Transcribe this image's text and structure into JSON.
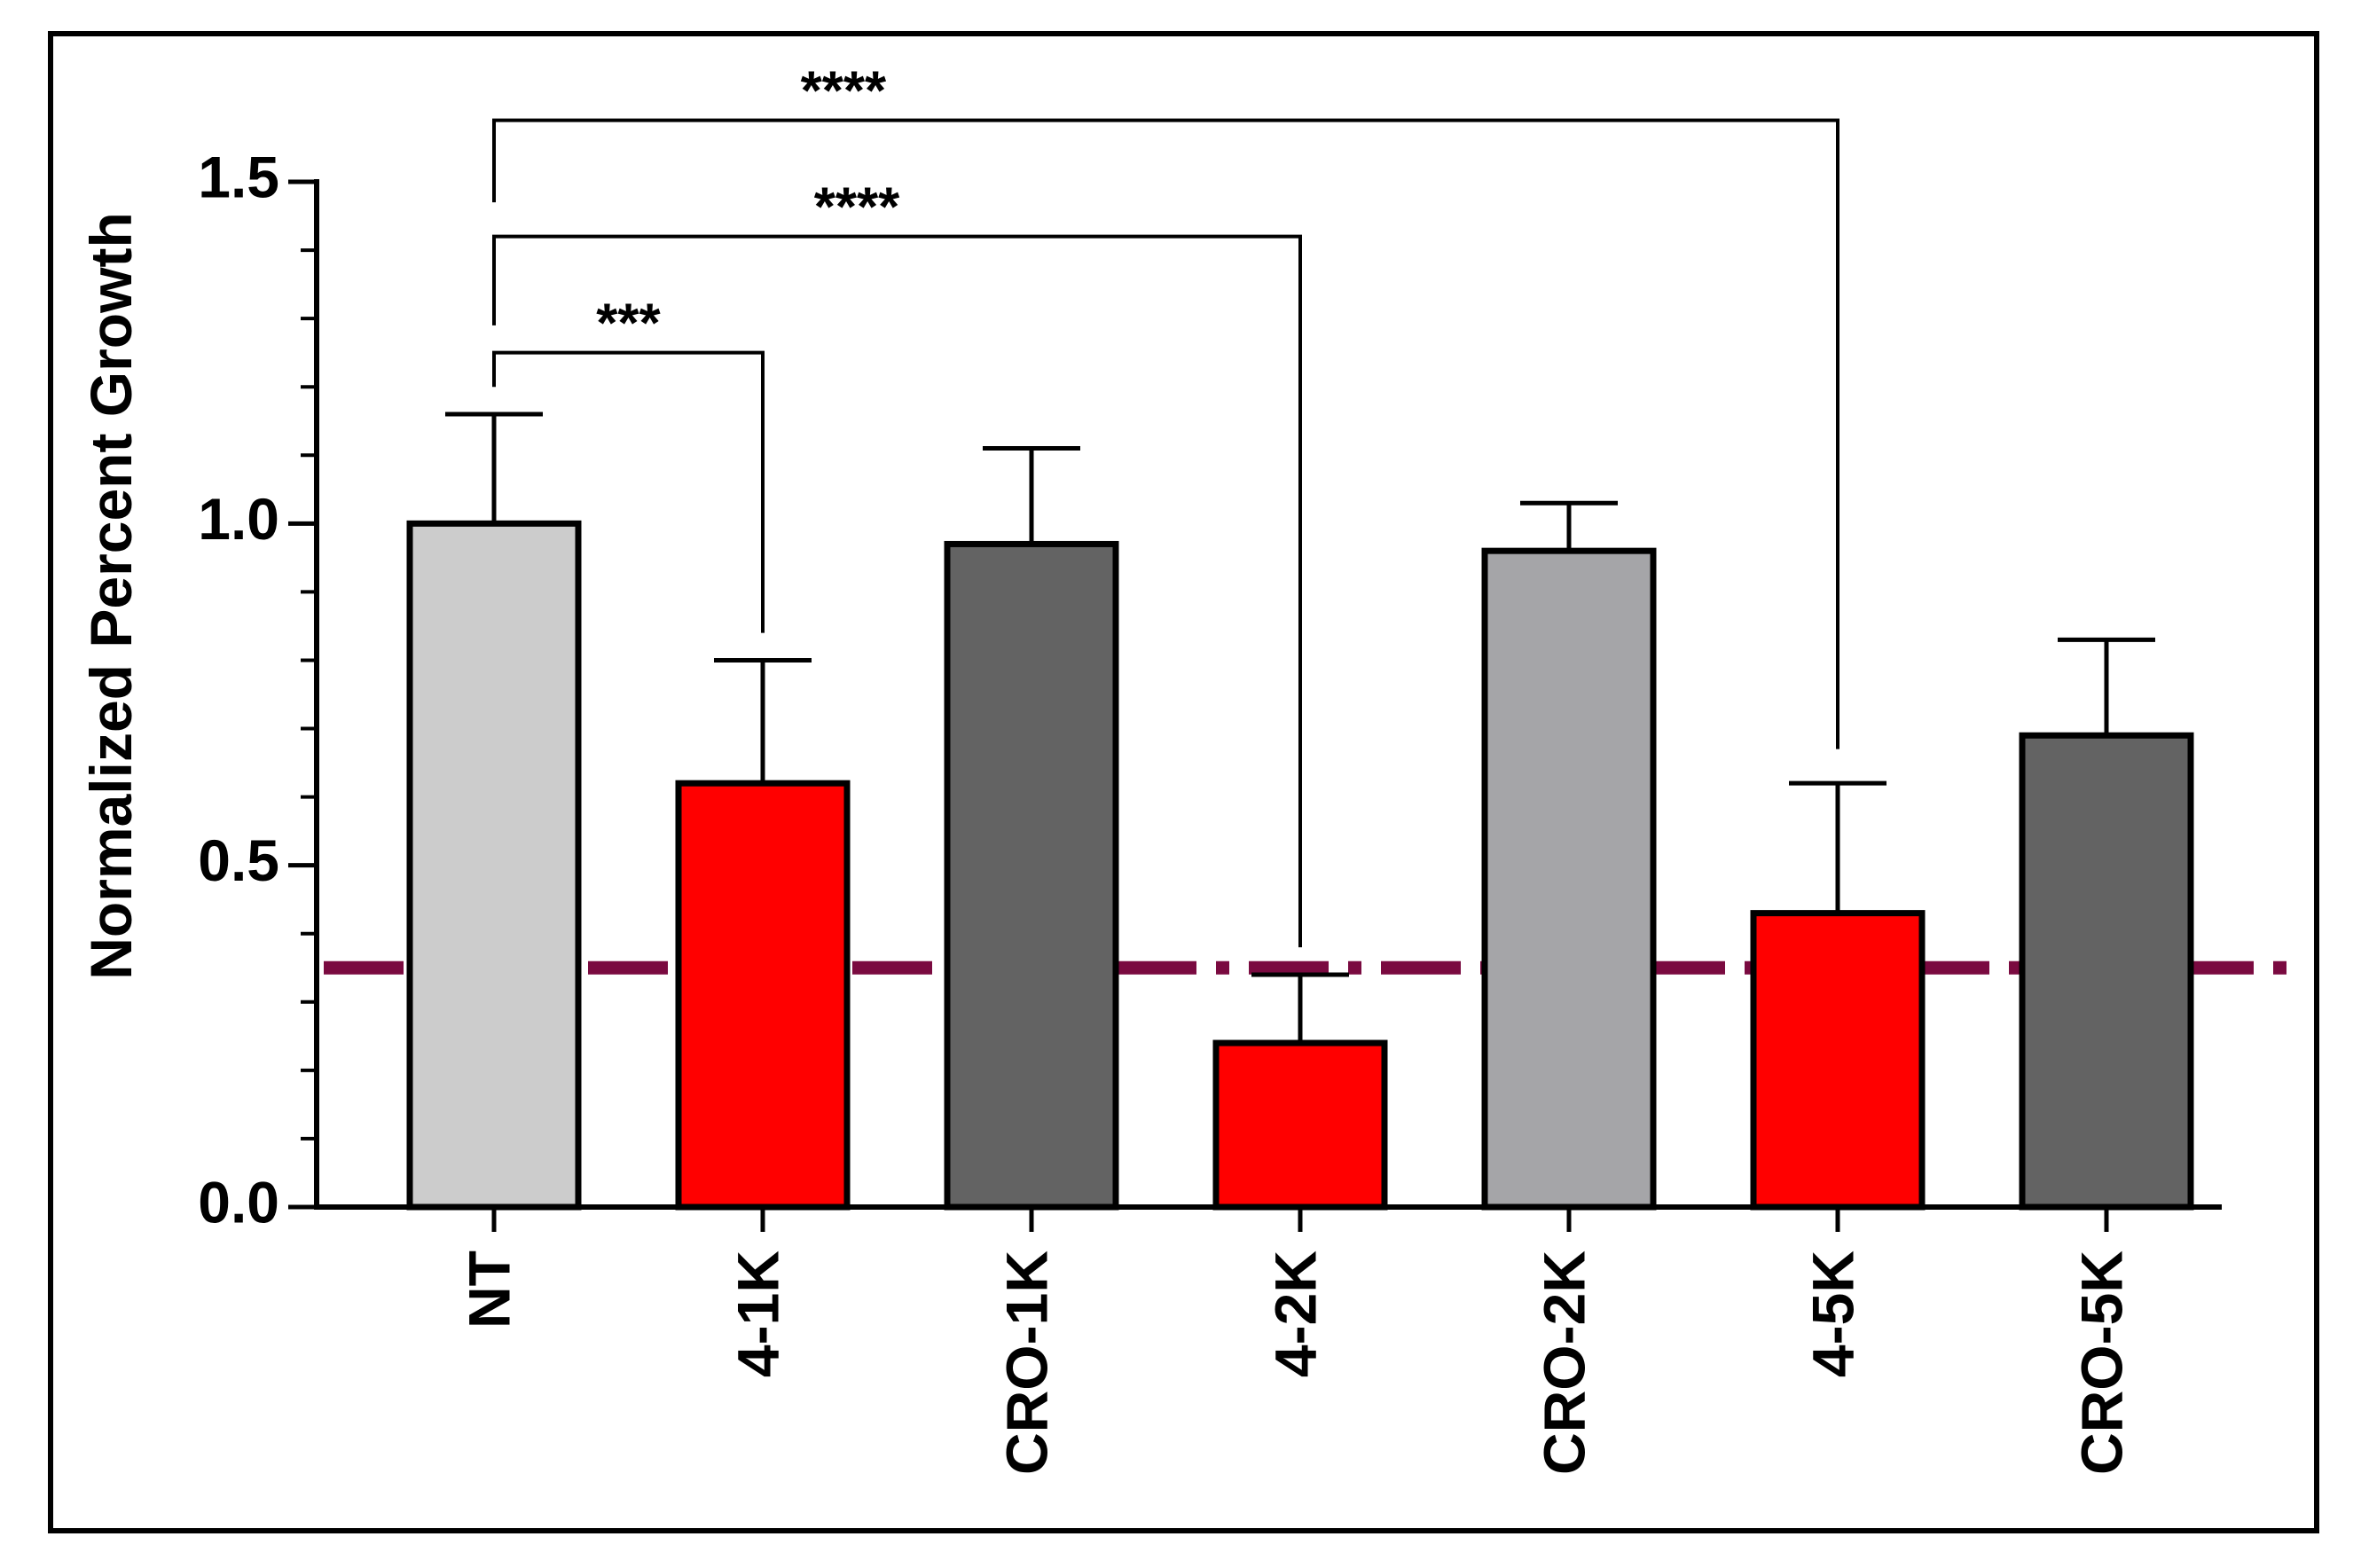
{
  "chart_data": {
    "type": "bar",
    "ylabel": "Normalized Percent Growth",
    "xlabel": "",
    "ylim": [
      0,
      1.5
    ],
    "yticks": [
      {
        "value": 0.0,
        "label": "0.0"
      },
      {
        "value": 0.5,
        "label": "0.5"
      },
      {
        "value": 1.0,
        "label": "1.0"
      },
      {
        "value": 1.5,
        "label": "1.5"
      }
    ],
    "minor_tick_step": 0.1,
    "categories": [
      "NT",
      "4-1K",
      "CRO-1K",
      "4-2K",
      "CRO-2K",
      "4-5K",
      "CRO-5K"
    ],
    "values": [
      1.0,
      0.62,
      0.97,
      0.24,
      0.96,
      0.43,
      0.69
    ],
    "errors": [
      0.16,
      0.18,
      0.14,
      0.1,
      0.07,
      0.19,
      0.14
    ],
    "colors": [
      "#cccccc",
      "#ff0000",
      "#636363",
      "#ff0000",
      "#a5a5a8",
      "#ff0000",
      "#636363"
    ],
    "reference_line": {
      "value": 0.35,
      "color": "#7a0a40",
      "style": "dash-dot"
    },
    "significance": [
      {
        "from": 0,
        "to": 1,
        "label": "***",
        "bracket_y": 1.25,
        "left_leg_to": 1.2,
        "right_leg_to": 0.84
      },
      {
        "from": 0,
        "to": 3,
        "label": "****",
        "bracket_y": 1.42,
        "left_leg_to": 1.29,
        "right_leg_to": 0.38
      },
      {
        "from": 0,
        "to": 5,
        "label": "****",
        "bracket_y": 1.59,
        "left_leg_to": 1.47,
        "right_leg_to": 0.67
      }
    ],
    "grid": false,
    "legend": "none"
  }
}
